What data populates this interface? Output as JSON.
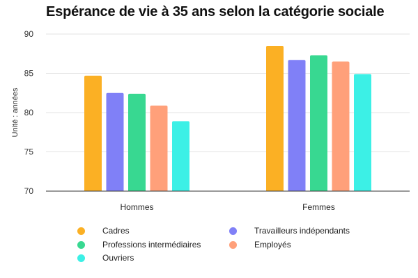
{
  "chart_data": {
    "type": "bar",
    "title": "Espérance de vie à 35 ans selon la catégorie sociale",
    "ylabel": "Unité : années",
    "xlabel": "",
    "ylim": [
      70,
      90
    ],
    "yticks": [
      70,
      75,
      80,
      85,
      90
    ],
    "grid": true,
    "categories": [
      "Hommes",
      "Femmes"
    ],
    "series": [
      {
        "name": "Cadres",
        "color": "#FBB024",
        "values": [
          84.7,
          88.5
        ]
      },
      {
        "name": "Travailleurs indépendants",
        "color": "#8080F7",
        "values": [
          82.5,
          86.7
        ]
      },
      {
        "name": "Professions intermédiaires",
        "color": "#38D891",
        "values": [
          82.4,
          87.3
        ]
      },
      {
        "name": "Employés",
        "color": "#FFA07A",
        "values": [
          80.9,
          86.5
        ]
      },
      {
        "name": "Ouvriers",
        "color": "#3CF0E6",
        "values": [
          78.9,
          84.9
        ]
      }
    ],
    "legend_order": [
      "Cadres",
      "Travailleurs indépendants",
      "Professions intermédiaires",
      "Employés",
      "Ouvriers"
    ],
    "legend_position": "bottom"
  }
}
